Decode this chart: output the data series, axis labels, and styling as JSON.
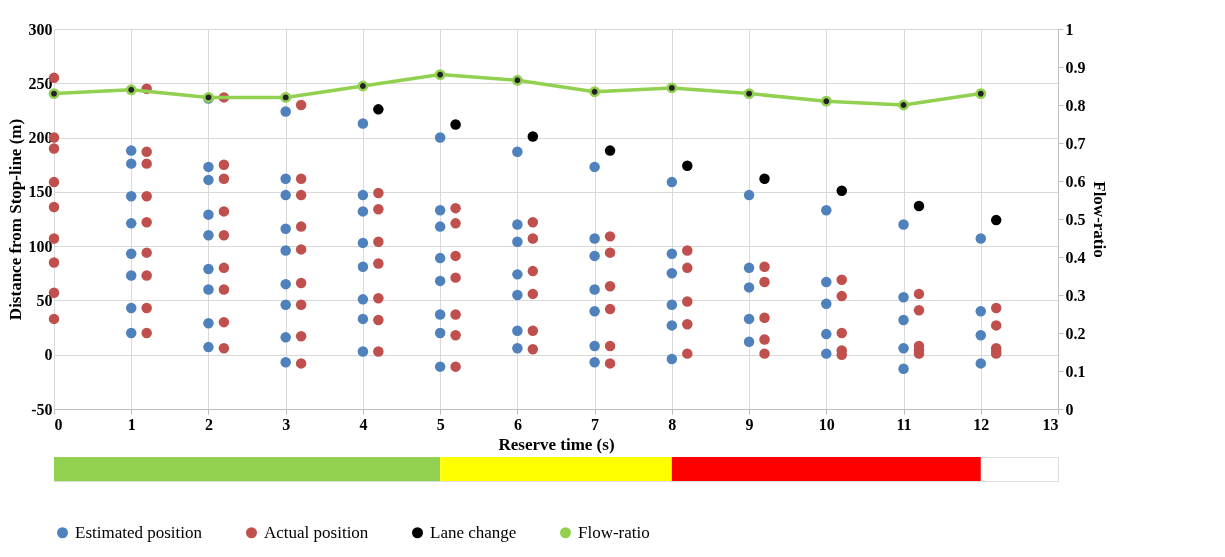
{
  "chart_data": [
    {
      "type": "scatter",
      "xlabel": "Reserve time (s)",
      "ylabel": "Distance from Stop-line (m)",
      "y2label": "Flow-ratio",
      "xlim": [
        0,
        13
      ],
      "xticks": [
        0,
        1,
        2,
        3,
        4,
        5,
        6,
        7,
        8,
        9,
        10,
        11,
        12,
        13
      ],
      "ylim": [
        -50,
        300
      ],
      "yticks": [
        -50,
        0,
        50,
        100,
        150,
        200,
        250,
        300
      ],
      "y2lim": [
        0,
        1
      ],
      "y2ticks": [
        0,
        0.1,
        0.2,
        0.3,
        0.4,
        0.5,
        0.6,
        0.7,
        0.8,
        0.9,
        1
      ],
      "grid": true,
      "legend": "bottom",
      "marker": "circle",
      "series": [
        {
          "name": "Estimated position",
          "color": "#4f81bd",
          "x": [
            1,
            1,
            1,
            1,
            1,
            1,
            1,
            1,
            2,
            2,
            2,
            2,
            2,
            2,
            2,
            2,
            2,
            3,
            3,
            3,
            3,
            3,
            3,
            3,
            3,
            3,
            4,
            4,
            4,
            4,
            4,
            4,
            4,
            4,
            5,
            5,
            5,
            5,
            5,
            5,
            5,
            5,
            6,
            6,
            6,
            6,
            6,
            6,
            6,
            7,
            7,
            7,
            7,
            7,
            7,
            7,
            8,
            8,
            8,
            8,
            8,
            8,
            9,
            9,
            9,
            9,
            9,
            10,
            10,
            10,
            10,
            10,
            11,
            11,
            11,
            11,
            11,
            12,
            12,
            12,
            12
          ],
          "values": [
            188,
            176,
            146,
            121,
            93,
            73,
            43,
            20,
            236,
            173,
            161,
            129,
            110,
            79,
            60,
            29,
            7,
            224,
            162,
            147,
            116,
            96,
            65,
            46,
            16,
            -7,
            213,
            147,
            132,
            103,
            81,
            51,
            33,
            3,
            200,
            133,
            118,
            89,
            68,
            37,
            20,
            -11,
            187,
            120,
            104,
            74,
            55,
            22,
            6,
            173,
            107,
            91,
            60,
            40,
            8,
            -7,
            159,
            93,
            75,
            46,
            27,
            -4,
            147,
            80,
            62,
            33,
            12,
            133,
            67,
            47,
            19,
            1,
            120,
            53,
            32,
            6,
            -13,
            107,
            40,
            18,
            -8
          ]
        },
        {
          "name": "Actual position",
          "color": "#c0504d",
          "x": [
            0,
            0,
            0,
            0,
            0,
            0,
            0,
            0,
            0,
            1.2,
            1.2,
            1.2,
            1.2,
            1.2,
            1.2,
            1.2,
            1.2,
            1.2,
            2.2,
            2.2,
            2.2,
            2.2,
            2.2,
            2.2,
            2.2,
            2.2,
            2.2,
            3.2,
            3.2,
            3.2,
            3.2,
            3.2,
            3.2,
            3.2,
            3.2,
            3.2,
            4.2,
            4.2,
            4.2,
            4.2,
            4.2,
            4.2,
            4.2,
            5.2,
            5.2,
            5.2,
            5.2,
            5.2,
            5.2,
            5.2,
            6.2,
            6.2,
            6.2,
            6.2,
            6.2,
            6.2,
            7.2,
            7.2,
            7.2,
            7.2,
            7.2,
            7.2,
            8.2,
            8.2,
            8.2,
            8.2,
            8.2,
            9.2,
            9.2,
            9.2,
            9.2,
            9.2,
            10.2,
            10.2,
            10.2,
            10.2,
            10.2,
            11.2,
            11.2,
            11.2,
            11.2,
            11.2,
            12.2,
            12.2,
            12.2,
            12.2,
            12.2
          ],
          "values": [
            255,
            200,
            190,
            159,
            136,
            107,
            85,
            57,
            33,
            245,
            187,
            176,
            146,
            122,
            94,
            73,
            43,
            20,
            237,
            175,
            162,
            132,
            110,
            80,
            60,
            30,
            6,
            230,
            162,
            147,
            118,
            97,
            66,
            46,
            17,
            -8,
            149,
            134,
            104,
            84,
            52,
            32,
            3,
            135,
            121,
            91,
            71,
            37,
            18,
            -11,
            122,
            107,
            77,
            56,
            22,
            5,
            109,
            94,
            63,
            42,
            8,
            -8,
            96,
            80,
            49,
            28,
            1,
            81,
            67,
            34,
            14,
            1,
            69,
            54,
            20,
            4,
            0,
            56,
            41,
            8,
            4,
            1,
            43,
            27,
            6,
            3,
            1
          ]
        },
        {
          "name": "Lane change",
          "color": "#000000",
          "x": [
            4.2,
            5.2,
            6.2,
            7.2,
            8.2,
            9.2,
            10.2,
            11.2,
            12.2
          ],
          "values": [
            226,
            212,
            201,
            188,
            174,
            162,
            151,
            137,
            124
          ]
        },
        {
          "name": "Flow-ratio",
          "type": "line",
          "axis": "y2",
          "color": "#92d050",
          "x": [
            0,
            1,
            2,
            3,
            4,
            5,
            6,
            7,
            8,
            9,
            10,
            11,
            12
          ],
          "values": [
            0.83,
            0.84,
            0.82,
            0.82,
            0.85,
            0.88,
            0.865,
            0.835,
            0.845,
            0.83,
            0.81,
            0.8,
            0.83
          ]
        }
      ]
    },
    {
      "type": "bar",
      "orientation": "horizontal",
      "stacked": true,
      "categories": [
        null
      ],
      "xlim": [
        0,
        13
      ],
      "tick_labels": false,
      "series": [
        {
          "color": "#92d050",
          "values": [
            5
          ]
        },
        {
          "color": "#ffff00",
          "values": [
            3
          ]
        },
        {
          "color": "#ff0000",
          "values": [
            4
          ]
        }
      ]
    }
  ]
}
